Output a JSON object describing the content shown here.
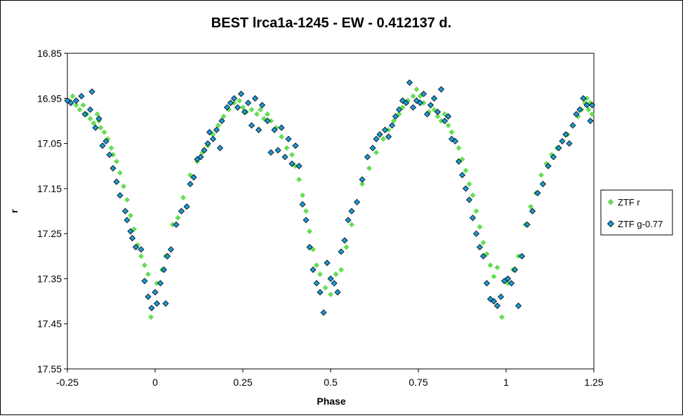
{
  "chart_data": {
    "type": "scatter",
    "title": "BEST lrca1a-1245 - EW - 0.412137  d.",
    "xlabel": "Phase",
    "ylabel": "r",
    "xlim": [
      -0.25,
      1.25
    ],
    "ylim": [
      16.85,
      17.55
    ],
    "y_inverted": true,
    "x_ticks": [
      "-0.25",
      "0",
      "0.25",
      "0.5",
      "0.75",
      "1",
      "1.25"
    ],
    "y_ticks": [
      "16.85",
      "16.95",
      "17.05",
      "17.15",
      "17.25",
      "17.35",
      "17.45",
      "17.55"
    ],
    "grid": false,
    "legend_position": "right",
    "colors": {
      "ztf_r": "#66dd55",
      "ztf_g": "#1a9ad6"
    },
    "series": [
      {
        "name": "ZTF r",
        "marker": "diamond",
        "color": "#66dd55",
        "points": [
          [
            -0.245,
            16.955
          ],
          [
            -0.235,
            16.945
          ],
          [
            -0.225,
            16.965
          ],
          [
            -0.215,
            16.975
          ],
          [
            -0.205,
            16.965
          ],
          [
            -0.195,
            16.985
          ],
          [
            -0.185,
            16.995
          ],
          [
            -0.175,
            17.005
          ],
          [
            -0.165,
            16.985
          ],
          [
            -0.16,
            17.0
          ],
          [
            -0.155,
            17.015
          ],
          [
            -0.145,
            17.025
          ],
          [
            -0.135,
            17.04
          ],
          [
            -0.125,
            17.06
          ],
          [
            -0.12,
            17.075
          ],
          [
            -0.11,
            17.09
          ],
          [
            -0.1,
            17.115
          ],
          [
            -0.09,
            17.145
          ],
          [
            -0.08,
            17.175
          ],
          [
            -0.07,
            17.21
          ],
          [
            -0.06,
            17.24
          ],
          [
            -0.05,
            17.275
          ],
          [
            -0.04,
            17.3
          ],
          [
            -0.03,
            17.32
          ],
          [
            -0.02,
            17.34
          ],
          [
            -0.012,
            17.435
          ],
          [
            0.005,
            17.36
          ],
          [
            0.02,
            17.33
          ],
          [
            0.03,
            17.3
          ],
          [
            0.05,
            17.23
          ],
          [
            0.065,
            17.215
          ],
          [
            0.08,
            17.17
          ],
          [
            0.1,
            17.12
          ],
          [
            0.12,
            17.09
          ],
          [
            0.135,
            17.07
          ],
          [
            0.15,
            17.055
          ],
          [
            0.165,
            17.03
          ],
          [
            0.18,
            17.01
          ],
          [
            0.195,
            16.99
          ],
          [
            0.21,
            16.975
          ],
          [
            0.225,
            16.96
          ],
          [
            0.24,
            16.955
          ],
          [
            0.25,
            16.97
          ],
          [
            0.26,
            16.98
          ],
          [
            0.275,
            16.975
          ],
          [
            0.29,
            16.985
          ],
          [
            0.3,
            16.975
          ],
          [
            0.31,
            16.995
          ],
          [
            0.32,
            16.985
          ],
          [
            0.33,
            17.0
          ],
          [
            0.345,
            17.015
          ],
          [
            0.36,
            17.035
          ],
          [
            0.375,
            17.06
          ],
          [
            0.39,
            17.075
          ],
          [
            0.4,
            17.1
          ],
          [
            0.41,
            17.13
          ],
          [
            0.42,
            17.165
          ],
          [
            0.43,
            17.2
          ],
          [
            0.44,
            17.245
          ],
          [
            0.45,
            17.285
          ],
          [
            0.46,
            17.32
          ],
          [
            0.47,
            17.34
          ],
          [
            0.485,
            17.37
          ],
          [
            0.5,
            17.385
          ],
          [
            0.515,
            17.34
          ],
          [
            0.53,
            17.33
          ],
          [
            0.545,
            17.28
          ],
          [
            0.56,
            17.23
          ],
          [
            0.575,
            17.18
          ],
          [
            0.59,
            17.14
          ],
          [
            0.61,
            17.105
          ],
          [
            0.63,
            17.07
          ],
          [
            0.65,
            17.04
          ],
          [
            0.665,
            17.02
          ],
          [
            0.68,
            17.0
          ],
          [
            0.695,
            16.985
          ],
          [
            0.705,
            16.97
          ],
          [
            0.72,
            16.955
          ],
          [
            0.735,
            16.945
          ],
          [
            0.745,
            16.93
          ],
          [
            0.755,
            16.945
          ],
          [
            0.765,
            16.96
          ],
          [
            0.78,
            16.98
          ],
          [
            0.795,
            16.975
          ],
          [
            0.805,
            16.99
          ],
          [
            0.815,
            17.0
          ],
          [
            0.825,
            16.985
          ],
          [
            0.835,
            17.01
          ],
          [
            0.845,
            17.025
          ],
          [
            0.855,
            17.045
          ],
          [
            0.865,
            17.06
          ],
          [
            0.875,
            17.085
          ],
          [
            0.885,
            17.11
          ],
          [
            0.895,
            17.14
          ],
          [
            0.905,
            17.165
          ],
          [
            0.915,
            17.2
          ],
          [
            0.925,
            17.235
          ],
          [
            0.935,
            17.27
          ],
          [
            0.945,
            17.295
          ],
          [
            0.955,
            17.32
          ],
          [
            0.965,
            17.345
          ],
          [
            0.975,
            17.325
          ],
          [
            0.988,
            17.435
          ],
          [
            1.005,
            17.36
          ],
          [
            1.02,
            17.33
          ],
          [
            1.035,
            17.3
          ],
          [
            1.055,
            17.23
          ],
          [
            1.07,
            17.19
          ],
          [
            1.085,
            17.16
          ],
          [
            1.1,
            17.12
          ],
          [
            1.115,
            17.095
          ],
          [
            1.13,
            17.075
          ],
          [
            1.145,
            17.06
          ],
          [
            1.16,
            17.045
          ],
          [
            1.175,
            17.03
          ],
          [
            1.19,
            17.01
          ],
          [
            1.205,
            16.99
          ],
          [
            1.215,
            16.975
          ],
          [
            1.225,
            16.96
          ],
          [
            1.235,
            16.975
          ],
          [
            1.245,
            16.985
          ],
          [
            1.24,
            16.96
          ],
          [
            1.23,
            16.95
          ]
        ]
      },
      {
        "name": "ZTF g-0.77",
        "marker": "diamond",
        "color": "#1a9ad6",
        "points": [
          [
            -0.25,
            16.955
          ],
          [
            -0.24,
            16.96
          ],
          [
            -0.225,
            16.955
          ],
          [
            -0.21,
            16.945
          ],
          [
            -0.2,
            16.985
          ],
          [
            -0.185,
            16.975
          ],
          [
            -0.18,
            16.935
          ],
          [
            -0.17,
            17.015
          ],
          [
            -0.16,
            16.995
          ],
          [
            -0.15,
            17.055
          ],
          [
            -0.14,
            17.045
          ],
          [
            -0.13,
            17.075
          ],
          [
            -0.12,
            17.105
          ],
          [
            -0.11,
            17.135
          ],
          [
            -0.1,
            17.165
          ],
          [
            -0.085,
            17.2
          ],
          [
            -0.08,
            17.22
          ],
          [
            -0.07,
            17.245
          ],
          [
            -0.065,
            17.26
          ],
          [
            -0.055,
            17.28
          ],
          [
            -0.04,
            17.285
          ],
          [
            -0.03,
            17.355
          ],
          [
            -0.02,
            17.39
          ],
          [
            -0.01,
            17.415
          ],
          [
            0.0,
            17.38
          ],
          [
            0.005,
            17.405
          ],
          [
            0.015,
            17.36
          ],
          [
            0.025,
            17.33
          ],
          [
            0.03,
            17.405
          ],
          [
            0.035,
            17.3
          ],
          [
            0.045,
            17.285
          ],
          [
            0.06,
            17.23
          ],
          [
            0.075,
            17.2
          ],
          [
            0.09,
            17.19
          ],
          [
            0.1,
            17.14
          ],
          [
            0.11,
            17.125
          ],
          [
            0.12,
            17.085
          ],
          [
            0.13,
            17.08
          ],
          [
            0.14,
            17.065
          ],
          [
            0.15,
            17.05
          ],
          [
            0.155,
            17.025
          ],
          [
            0.165,
            17.04
          ],
          [
            0.175,
            17.02
          ],
          [
            0.185,
            17.06
          ],
          [
            0.19,
            17.0
          ],
          [
            0.205,
            16.97
          ],
          [
            0.215,
            16.96
          ],
          [
            0.225,
            16.95
          ],
          [
            0.235,
            16.97
          ],
          [
            0.245,
            16.94
          ],
          [
            0.255,
            16.98
          ],
          [
            0.265,
            16.96
          ],
          [
            0.275,
            17.01
          ],
          [
            0.285,
            16.95
          ],
          [
            0.295,
            17.02
          ],
          [
            0.305,
            16.965
          ],
          [
            0.32,
            17.0
          ],
          [
            0.33,
            17.07
          ],
          [
            0.34,
            17.02
          ],
          [
            0.35,
            17.065
          ],
          [
            0.36,
            17.015
          ],
          [
            0.37,
            17.08
          ],
          [
            0.38,
            17.04
          ],
          [
            0.39,
            17.095
          ],
          [
            0.4,
            17.055
          ],
          [
            0.41,
            17.1
          ],
          [
            0.42,
            17.185
          ],
          [
            0.43,
            17.22
          ],
          [
            0.44,
            17.28
          ],
          [
            0.45,
            17.33
          ],
          [
            0.46,
            17.36
          ],
          [
            0.47,
            17.38
          ],
          [
            0.48,
            17.425
          ],
          [
            0.49,
            17.315
          ],
          [
            0.5,
            17.35
          ],
          [
            0.51,
            17.36
          ],
          [
            0.52,
            17.38
          ],
          [
            0.53,
            17.29
          ],
          [
            0.54,
            17.265
          ],
          [
            0.55,
            17.22
          ],
          [
            0.56,
            17.2
          ],
          [
            0.575,
            17.18
          ],
          [
            0.59,
            17.13
          ],
          [
            0.605,
            17.08
          ],
          [
            0.62,
            17.06
          ],
          [
            0.63,
            17.04
          ],
          [
            0.64,
            17.03
          ],
          [
            0.655,
            17.02
          ],
          [
            0.665,
            17.035
          ],
          [
            0.675,
            17.01
          ],
          [
            0.685,
            16.99
          ],
          [
            0.695,
            16.975
          ],
          [
            0.705,
            16.955
          ],
          [
            0.715,
            16.96
          ],
          [
            0.725,
            16.915
          ],
          [
            0.735,
            16.97
          ],
          [
            0.745,
            16.955
          ],
          [
            0.755,
            16.96
          ],
          [
            0.765,
            16.94
          ],
          [
            0.775,
            16.985
          ],
          [
            0.785,
            16.965
          ],
          [
            0.795,
            16.95
          ],
          [
            0.805,
            16.98
          ],
          [
            0.815,
            16.93
          ],
          [
            0.825,
            17.0
          ],
          [
            0.835,
            16.99
          ],
          [
            0.845,
            17.04
          ],
          [
            0.855,
            17.045
          ],
          [
            0.865,
            17.09
          ],
          [
            0.875,
            17.12
          ],
          [
            0.885,
            17.15
          ],
          [
            0.895,
            17.175
          ],
          [
            0.905,
            17.215
          ],
          [
            0.915,
            17.25
          ],
          [
            0.925,
            17.28
          ],
          [
            0.935,
            17.3
          ],
          [
            0.945,
            17.36
          ],
          [
            0.955,
            17.395
          ],
          [
            0.965,
            17.4
          ],
          [
            0.975,
            17.41
          ],
          [
            0.985,
            17.39
          ],
          [
            0.995,
            17.355
          ],
          [
            1.005,
            17.35
          ],
          [
            1.015,
            17.36
          ],
          [
            1.025,
            17.33
          ],
          [
            1.035,
            17.41
          ],
          [
            1.045,
            17.3
          ],
          [
            1.06,
            17.23
          ],
          [
            1.075,
            17.2
          ],
          [
            1.09,
            17.16
          ],
          [
            1.105,
            17.14
          ],
          [
            1.12,
            17.1
          ],
          [
            1.135,
            17.08
          ],
          [
            1.15,
            17.06
          ],
          [
            1.16,
            17.045
          ],
          [
            1.17,
            17.03
          ],
          [
            1.18,
            17.05
          ],
          [
            1.19,
            17.01
          ],
          [
            1.2,
            16.985
          ],
          [
            1.21,
            16.975
          ],
          [
            1.22,
            16.95
          ],
          [
            1.23,
            16.965
          ],
          [
            1.24,
            17.0
          ],
          [
            1.245,
            16.965
          ]
        ]
      }
    ]
  }
}
